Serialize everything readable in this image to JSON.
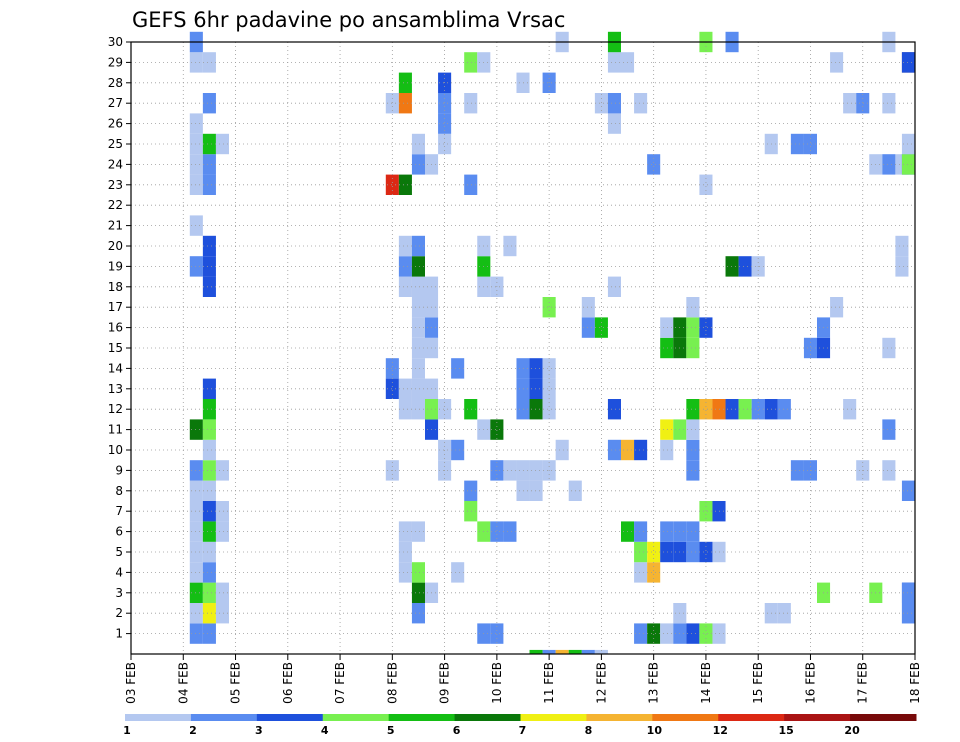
{
  "chart_data": {
    "type": "heatmap",
    "title": "GEFS 6hr padavine po ansamblima Vrsac",
    "x_tick_labels": [
      "03 FEB",
      "04 FEB",
      "05 FEB",
      "06 FEB",
      "07 FEB",
      "08 FEB",
      "09 FEB",
      "10 FEB",
      "11 FEB",
      "12 FEB",
      "13 FEB",
      "14 FEB",
      "15 FEB",
      "16 FEB",
      "17 FEB",
      "18 FEB"
    ],
    "y_tick_labels": [
      "1",
      "2",
      "3",
      "4",
      "5",
      "6",
      "7",
      "8",
      "9",
      "10",
      "11",
      "12",
      "13",
      "14",
      "15",
      "16",
      "17",
      "18",
      "19",
      "20",
      "21",
      "22",
      "23",
      "24",
      "25",
      "26",
      "27",
      "28",
      "29",
      "30"
    ],
    "ylim": [
      0,
      30
    ],
    "x_step": "6hr",
    "color_scale": {
      "labels": [
        "1",
        "2",
        "3",
        "4",
        "5",
        "6",
        "7",
        "8",
        "10",
        "12",
        "15",
        "20"
      ],
      "colors": [
        "#b4c8f0",
        "#5a8cf0",
        "#1e50dc",
        "#78f050",
        "#14be14",
        "#0a780a",
        "#f0f014",
        "#f5b432",
        "#f07814",
        "#dc2814",
        "#aa1414",
        "#780a0a"
      ]
    },
    "cells": [
      [
        4.25,
        1,
        2
      ],
      [
        4.25,
        2,
        1
      ],
      [
        4.25,
        3,
        5
      ],
      [
        4.25,
        4,
        1
      ],
      [
        4.25,
        5,
        1
      ],
      [
        4.25,
        6,
        1
      ],
      [
        4.25,
        7,
        1
      ],
      [
        4.25,
        8,
        1
      ],
      [
        4.25,
        9,
        2
      ],
      [
        4.25,
        11,
        6
      ],
      [
        4.25,
        19,
        2
      ],
      [
        4.25,
        21,
        1
      ],
      [
        4.25,
        23,
        1
      ],
      [
        4.25,
        24,
        1
      ],
      [
        4.25,
        25,
        1
      ],
      [
        4.25,
        26,
        1
      ],
      [
        4.25,
        29,
        1
      ],
      [
        4.25,
        30,
        2
      ],
      [
        4.5,
        1,
        2
      ],
      [
        4.5,
        2,
        7
      ],
      [
        4.5,
        3,
        4
      ],
      [
        4.5,
        4,
        2
      ],
      [
        4.5,
        5,
        1
      ],
      [
        4.5,
        6,
        5
      ],
      [
        4.5,
        7,
        3
      ],
      [
        4.5,
        8,
        1
      ],
      [
        4.5,
        9,
        4
      ],
      [
        4.5,
        10,
        1
      ],
      [
        4.5,
        11,
        4
      ],
      [
        4.5,
        12,
        5
      ],
      [
        4.5,
        13,
        3
      ],
      [
        4.5,
        18,
        3
      ],
      [
        4.5,
        19,
        3
      ],
      [
        4.5,
        20,
        3
      ],
      [
        4.5,
        23,
        2
      ],
      [
        4.5,
        24,
        2
      ],
      [
        4.5,
        25,
        5
      ],
      [
        4.5,
        27,
        2
      ],
      [
        4.5,
        29,
        1
      ],
      [
        4.75,
        2,
        1
      ],
      [
        4.75,
        3,
        1
      ],
      [
        4.75,
        6,
        1
      ],
      [
        4.75,
        7,
        1
      ],
      [
        4.75,
        9,
        1
      ],
      [
        4.75,
        25,
        1
      ],
      [
        8.0,
        9,
        1
      ],
      [
        8.0,
        13,
        3
      ],
      [
        8.0,
        14,
        2
      ],
      [
        8.0,
        23,
        10
      ],
      [
        8.0,
        27,
        1
      ],
      [
        8.25,
        4,
        1
      ],
      [
        8.25,
        5,
        1
      ],
      [
        8.25,
        6,
        1
      ],
      [
        8.25,
        12,
        1
      ],
      [
        8.25,
        13,
        1
      ],
      [
        8.25,
        18,
        1
      ],
      [
        8.25,
        19,
        2
      ],
      [
        8.25,
        20,
        1
      ],
      [
        8.25,
        23,
        6
      ],
      [
        8.25,
        27,
        9
      ],
      [
        8.25,
        28,
        5
      ],
      [
        8.5,
        2,
        2
      ],
      [
        8.5,
        3,
        6
      ],
      [
        8.5,
        4,
        4
      ],
      [
        8.5,
        6,
        1
      ],
      [
        8.5,
        12,
        1
      ],
      [
        8.5,
        13,
        1
      ],
      [
        8.5,
        14,
        1
      ],
      [
        8.5,
        15,
        1
      ],
      [
        8.5,
        16,
        1
      ],
      [
        8.5,
        17,
        1
      ],
      [
        8.5,
        18,
        1
      ],
      [
        8.5,
        19,
        6
      ],
      [
        8.5,
        20,
        2
      ],
      [
        8.5,
        24,
        2
      ],
      [
        8.5,
        25,
        1
      ],
      [
        8.75,
        3,
        1
      ],
      [
        8.75,
        11,
        3
      ],
      [
        8.75,
        12,
        4
      ],
      [
        8.75,
        13,
        1
      ],
      [
        8.75,
        15,
        1
      ],
      [
        8.75,
        16,
        2
      ],
      [
        8.75,
        17,
        1
      ],
      [
        8.75,
        18,
        1
      ],
      [
        8.75,
        24,
        1
      ],
      [
        9.0,
        9,
        1
      ],
      [
        9.0,
        10,
        1
      ],
      [
        9.0,
        12,
        1
      ],
      [
        9.0,
        25,
        1
      ],
      [
        9.0,
        26,
        2
      ],
      [
        9.0,
        27,
        2
      ],
      [
        9.0,
        28,
        3
      ],
      [
        9.25,
        4,
        1
      ],
      [
        9.25,
        10,
        2
      ],
      [
        9.25,
        14,
        2
      ],
      [
        9.5,
        7,
        4
      ],
      [
        9.5,
        8,
        2
      ],
      [
        9.5,
        12,
        5
      ],
      [
        9.5,
        23,
        2
      ],
      [
        9.5,
        27,
        1
      ],
      [
        9.5,
        29,
        4
      ],
      [
        9.75,
        1,
        2
      ],
      [
        9.75,
        6,
        4
      ],
      [
        9.75,
        11,
        1
      ],
      [
        9.75,
        18,
        1
      ],
      [
        9.75,
        19,
        5
      ],
      [
        9.75,
        20,
        1
      ],
      [
        9.75,
        29,
        1
      ],
      [
        10.0,
        1,
        2
      ],
      [
        10.0,
        6,
        2
      ],
      [
        10.0,
        9,
        2
      ],
      [
        10.0,
        11,
        6
      ],
      [
        10.0,
        18,
        1
      ],
      [
        10.25,
        6,
        2
      ],
      [
        10.25,
        9,
        1
      ],
      [
        10.25,
        20,
        1
      ],
      [
        10.5,
        8,
        1
      ],
      [
        10.5,
        9,
        1
      ],
      [
        10.5,
        12,
        2
      ],
      [
        10.5,
        13,
        2
      ],
      [
        10.5,
        14,
        2
      ],
      [
        10.5,
        28,
        1
      ],
      [
        10.75,
        0.2,
        5
      ],
      [
        10.75,
        8,
        1
      ],
      [
        10.75,
        9,
        1
      ],
      [
        10.75,
        12,
        6
      ],
      [
        10.75,
        13,
        3
      ],
      [
        10.75,
        14,
        3
      ],
      [
        11.0,
        0.2,
        2
      ],
      [
        11.0,
        9,
        1
      ],
      [
        11.0,
        12,
        1
      ],
      [
        11.0,
        13,
        1
      ],
      [
        11.0,
        14,
        1
      ],
      [
        11.0,
        17,
        4
      ],
      [
        11.0,
        28,
        2
      ],
      [
        11.25,
        0.2,
        8
      ],
      [
        11.25,
        10,
        1
      ],
      [
        11.25,
        30,
        1
      ],
      [
        11.5,
        0.2,
        5
      ],
      [
        11.5,
        8,
        1
      ],
      [
        11.75,
        0.2,
        2
      ],
      [
        11.75,
        16,
        2
      ],
      [
        11.75,
        17,
        1
      ],
      [
        12.0,
        0.2,
        1
      ],
      [
        12.0,
        16,
        5
      ],
      [
        12.0,
        27,
        1
      ],
      [
        12.25,
        10,
        2
      ],
      [
        12.25,
        12,
        3
      ],
      [
        12.25,
        18,
        1
      ],
      [
        12.25,
        26,
        1
      ],
      [
        12.25,
        27,
        2
      ],
      [
        12.25,
        29,
        1
      ],
      [
        12.25,
        30,
        5
      ],
      [
        12.5,
        6,
        5
      ],
      [
        12.5,
        10,
        8
      ],
      [
        12.5,
        29,
        1
      ],
      [
        12.75,
        1,
        2
      ],
      [
        12.75,
        4,
        1
      ],
      [
        12.75,
        5,
        4
      ],
      [
        12.75,
        6,
        2
      ],
      [
        12.75,
        10,
        3
      ],
      [
        12.75,
        27,
        1
      ],
      [
        13.0,
        1,
        6
      ],
      [
        13.0,
        4,
        8
      ],
      [
        13.0,
        5,
        7
      ],
      [
        13.0,
        24,
        2
      ],
      [
        13.25,
        1,
        1
      ],
      [
        13.25,
        5,
        3
      ],
      [
        13.25,
        6,
        2
      ],
      [
        13.25,
        10,
        1
      ],
      [
        13.25,
        11,
        7
      ],
      [
        13.25,
        15,
        5
      ],
      [
        13.25,
        16,
        1
      ],
      [
        13.5,
        1,
        2
      ],
      [
        13.5,
        2,
        1
      ],
      [
        13.5,
        5,
        3
      ],
      [
        13.5,
        6,
        2
      ],
      [
        13.5,
        11,
        4
      ],
      [
        13.5,
        15,
        6
      ],
      [
        13.5,
        16,
        6
      ],
      [
        13.75,
        1,
        3
      ],
      [
        13.75,
        5,
        2
      ],
      [
        13.75,
        6,
        2
      ],
      [
        13.75,
        9,
        2
      ],
      [
        13.75,
        10,
        2
      ],
      [
        13.75,
        11,
        1
      ],
      [
        13.75,
        12,
        5
      ],
      [
        13.75,
        15,
        4
      ],
      [
        13.75,
        16,
        4
      ],
      [
        13.75,
        17,
        1
      ],
      [
        14.0,
        1,
        4
      ],
      [
        14.0,
        5,
        3
      ],
      [
        14.0,
        7,
        4
      ],
      [
        14.0,
        12,
        8
      ],
      [
        14.0,
        16,
        3
      ],
      [
        14.0,
        23,
        1
      ],
      [
        14.0,
        30,
        4
      ],
      [
        14.25,
        1,
        1
      ],
      [
        14.25,
        5,
        1
      ],
      [
        14.25,
        7,
        3
      ],
      [
        14.25,
        12,
        9
      ],
      [
        14.5,
        12,
        3
      ],
      [
        14.5,
        19,
        6
      ],
      [
        14.5,
        30,
        2
      ],
      [
        14.75,
        12,
        4
      ],
      [
        14.75,
        19,
        3
      ],
      [
        15.0,
        12,
        2
      ],
      [
        15.0,
        19,
        1
      ],
      [
        15.25,
        2,
        1
      ],
      [
        15.25,
        12,
        3
      ],
      [
        15.25,
        25,
        1
      ],
      [
        15.5,
        2,
        1
      ],
      [
        15.5,
        12,
        2
      ],
      [
        15.75,
        9,
        2
      ],
      [
        15.75,
        25,
        2
      ],
      [
        16.0,
        9,
        2
      ],
      [
        16.0,
        15,
        2
      ],
      [
        16.0,
        25,
        2
      ],
      [
        16.25,
        3,
        4
      ],
      [
        16.25,
        15,
        3
      ],
      [
        16.25,
        16,
        2
      ],
      [
        16.5,
        17,
        1
      ],
      [
        16.5,
        29,
        1
      ],
      [
        16.75,
        12,
        1
      ],
      [
        16.75,
        27,
        1
      ],
      [
        17.0,
        9,
        1
      ],
      [
        17.0,
        27,
        2
      ],
      [
        17.25,
        3,
        4
      ],
      [
        17.25,
        24,
        1
      ],
      [
        17.5,
        9,
        1
      ],
      [
        17.5,
        11,
        2
      ],
      [
        17.5,
        15,
        1
      ],
      [
        17.5,
        24,
        2
      ],
      [
        17.5,
        27,
        1
      ],
      [
        17.5,
        30,
        1
      ],
      [
        17.75,
        19,
        1
      ],
      [
        17.75,
        20,
        1
      ],
      [
        17.75,
        24,
        1
      ],
      [
        18.0,
        3,
        3
      ],
      [
        18.0,
        24,
        2
      ],
      [
        18.0,
        29,
        9
      ],
      [
        18.25,
        2,
        2
      ],
      [
        18.25,
        3,
        2
      ],
      [
        18.25,
        24,
        2
      ],
      [
        18.25,
        29,
        2
      ],
      [
        18.5,
        2,
        2
      ],
      [
        18.5,
        8,
        2
      ],
      [
        18.5,
        24,
        4
      ],
      [
        18.5,
        25,
        1
      ],
      [
        18.5,
        29,
        3
      ]
    ]
  }
}
